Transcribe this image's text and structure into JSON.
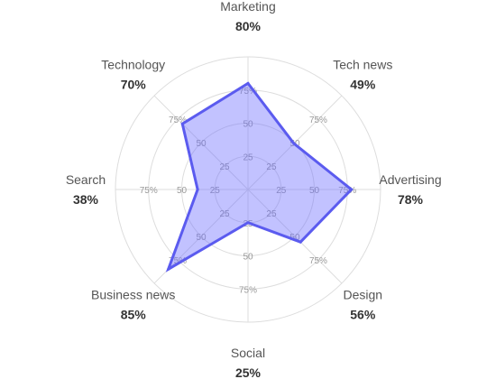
{
  "chart_data": {
    "type": "radar",
    "categories": [
      "Marketing",
      "Tech news",
      "Advertising",
      "Design",
      "Social",
      "Business news",
      "Search",
      "Technology"
    ],
    "values": [
      80,
      49,
      78,
      56,
      25,
      85,
      38,
      70
    ],
    "value_labels": [
      "80%",
      "49%",
      "78%",
      "56%",
      "25%",
      "85%",
      "38%",
      "70%"
    ],
    "radial_ticks": [
      25,
      50,
      75
    ],
    "radial_tick_labels": [
      "25",
      "50",
      "75%"
    ],
    "rmax": 100,
    "grid": true,
    "colors": {
      "fill": "#6e6eff",
      "stroke": "#5b5bef",
      "grid": "#dddddd"
    }
  }
}
